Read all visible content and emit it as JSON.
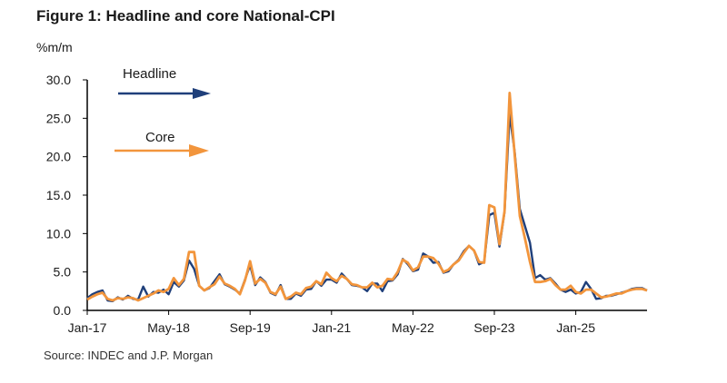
{
  "chart_data": {
    "type": "line",
    "title": "Figure 1: Headline and core National-CPI",
    "ylabel": "%m/m",
    "source": "Source: INDEC and J.P. Morgan",
    "ylim": [
      0,
      30
    ],
    "yticks": [
      "0.0",
      "5.0",
      "10.0",
      "15.0",
      "20.0",
      "25.0",
      "30.0"
    ],
    "xticks": [
      "Jan-17",
      "May-18",
      "Sep-19",
      "Jan-21",
      "May-22",
      "Sep-23",
      "Jan-25"
    ],
    "x_start": "Jan-17",
    "x_interval": "monthly",
    "legend": [
      "Headline",
      "Core"
    ],
    "colors": {
      "Headline": "#1f3f7a",
      "Core": "#f2953c"
    },
    "series": [
      {
        "name": "Headline",
        "values": [
          1.6,
          2.1,
          2.4,
          2.6,
          1.3,
          1.2,
          1.7,
          1.4,
          1.9,
          1.5,
          1.4,
          3.1,
          1.8,
          2.4,
          2.3,
          2.7,
          2.1,
          3.7,
          3.1,
          3.9,
          6.5,
          5.4,
          3.2,
          2.6,
          2.9,
          3.8,
          4.7,
          3.4,
          3.1,
          2.7,
          2.2,
          4.0,
          5.9,
          3.3,
          4.3,
          3.7,
          2.3,
          2.0,
          3.3,
          1.5,
          1.5,
          2.2,
          1.9,
          2.7,
          2.8,
          3.8,
          3.2,
          4.0,
          4.0,
          3.6,
          4.8,
          4.1,
          3.3,
          3.2,
          3.0,
          2.5,
          3.5,
          3.5,
          2.5,
          3.8,
          3.9,
          4.7,
          6.7,
          6.0,
          5.1,
          5.3,
          7.4,
          7.0,
          6.2,
          6.3,
          4.9,
          5.1,
          6.0,
          6.6,
          7.7,
          8.4,
          7.8,
          6.0,
          6.3,
          12.4,
          12.7,
          8.3,
          12.8,
          25.5,
          20.6,
          13.2,
          11.0,
          8.8,
          4.2,
          4.6,
          4.0,
          4.2,
          3.5,
          2.7,
          2.4,
          2.7,
          2.2,
          2.4,
          3.7,
          2.8,
          1.5,
          1.6,
          1.9,
          1.9,
          2.1,
          2.3,
          2.5,
          2.8,
          2.9,
          2.9,
          2.6
        ]
      },
      {
        "name": "Core",
        "values": [
          1.4,
          1.8,
          2.1,
          2.3,
          1.5,
          1.3,
          1.6,
          1.5,
          1.7,
          1.6,
          1.3,
          1.6,
          1.9,
          2.2,
          2.6,
          2.4,
          2.8,
          4.2,
          3.3,
          4.1,
          7.6,
          7.6,
          3.2,
          2.6,
          3.0,
          3.4,
          4.4,
          3.5,
          3.2,
          2.8,
          2.1,
          3.9,
          6.4,
          3.5,
          4.1,
          3.6,
          2.4,
          2.1,
          3.1,
          1.5,
          1.8,
          2.3,
          2.1,
          2.9,
          3.1,
          3.8,
          3.4,
          4.9,
          4.2,
          3.8,
          4.5,
          4.1,
          3.4,
          3.3,
          3.0,
          3.0,
          3.6,
          3.0,
          3.2,
          4.1,
          4.0,
          5.0,
          6.6,
          6.2,
          5.2,
          5.6,
          7.0,
          7.0,
          6.8,
          6.1,
          5.0,
          5.3,
          6.0,
          6.5,
          7.5,
          8.4,
          7.8,
          6.3,
          6.2,
          13.7,
          13.4,
          8.6,
          12.9,
          28.3,
          20.2,
          12.3,
          9.4,
          6.3,
          3.7,
          3.7,
          3.8,
          4.1,
          3.3,
          2.7,
          2.7,
          3.2,
          2.4,
          2.2,
          2.7,
          2.7,
          2.2,
          1.7,
          1.8,
          2.0,
          2.2,
          2.2,
          2.5,
          2.7,
          2.8,
          2.8,
          2.6
        ]
      }
    ]
  }
}
